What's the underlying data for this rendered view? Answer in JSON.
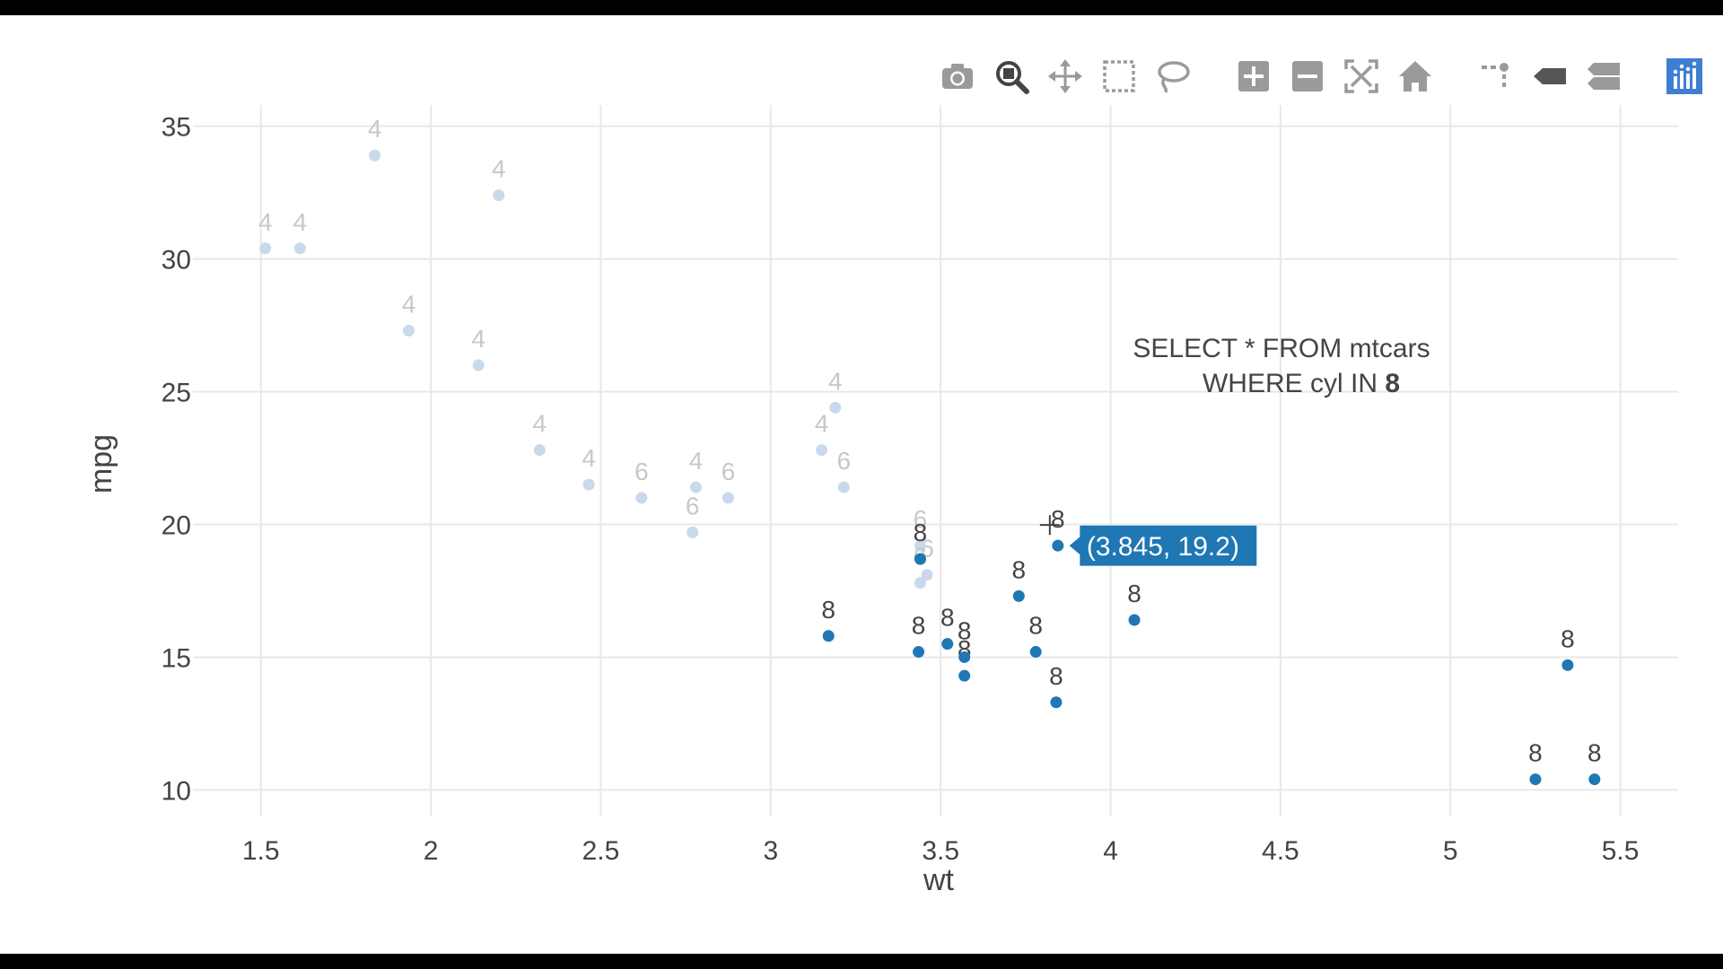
{
  "modebar": {
    "buttons": [
      {
        "name": "camera-icon",
        "label": "Download plot as a png",
        "active": false
      },
      {
        "name": "zoom-icon",
        "label": "Zoom",
        "active": true
      },
      {
        "name": "pan-icon",
        "label": "Pan",
        "active": false
      },
      {
        "name": "box-select-icon",
        "label": "Box Select",
        "active": false
      },
      {
        "name": "lasso-select-icon",
        "label": "Lasso Select",
        "active": false
      },
      {
        "name": "zoom-in-icon",
        "label": "Zoom in",
        "active": false
      },
      {
        "name": "zoom-out-icon",
        "label": "Zoom out",
        "active": false
      },
      {
        "name": "autoscale-icon",
        "label": "Autoscale",
        "active": false
      },
      {
        "name": "reset-axes-icon",
        "label": "Reset axes",
        "active": false
      },
      {
        "name": "spike-lines-icon",
        "label": "Toggle Spike Lines",
        "active": false
      },
      {
        "name": "hover-closest-icon",
        "label": "Show closest data on hover",
        "active": false
      },
      {
        "name": "hover-compare-icon",
        "label": "Compare data on hover",
        "active": false
      },
      {
        "name": "plotly-logo-icon",
        "label": "Produced with Plotly",
        "active": false
      }
    ]
  },
  "annotation": {
    "line1": "SELECT * FROM mtcars",
    "line2_prefix": "WHERE cyl IN ",
    "line2_bold": "8"
  },
  "hover": {
    "text": "(3.845, 19.2)",
    "x": 3.845,
    "y": 19.2
  },
  "chart_data": {
    "type": "scatter",
    "xlabel": "wt",
    "ylabel": "mpg",
    "xlim": [
      1.3,
      5.67
    ],
    "ylim": [
      9.0,
      35.8
    ],
    "xticks": [
      1.5,
      2,
      2.5,
      3,
      3.5,
      4,
      4.5,
      5,
      5.5
    ],
    "xtick_labels": [
      "1.5",
      "2",
      "2.5",
      "3",
      "3.5",
      "4",
      "4.5",
      "5",
      "5.5"
    ],
    "yticks": [
      10,
      15,
      20,
      25,
      30,
      35
    ],
    "ytick_labels": [
      "10",
      "15",
      "20",
      "25",
      "30",
      "35"
    ],
    "grid": true,
    "selected_color": "#1f77b4",
    "unselected_color": "#c8d9eb",
    "selected_label_color": "#444444",
    "unselected_label_color": "#c8c8c8",
    "points": [
      {
        "x": 2.62,
        "y": 21.0,
        "label": "6",
        "selected": false
      },
      {
        "x": 2.875,
        "y": 21.0,
        "label": "6",
        "selected": false
      },
      {
        "x": 2.32,
        "y": 22.8,
        "label": "4",
        "selected": false
      },
      {
        "x": 3.215,
        "y": 21.4,
        "label": "6",
        "selected": false
      },
      {
        "x": 3.44,
        "y": 18.7,
        "label": "8",
        "selected": true
      },
      {
        "x": 3.46,
        "y": 18.1,
        "label": "6",
        "selected": false
      },
      {
        "x": 3.57,
        "y": 14.3,
        "label": "8",
        "selected": true
      },
      {
        "x": 3.19,
        "y": 24.4,
        "label": "4",
        "selected": false
      },
      {
        "x": 3.15,
        "y": 22.8,
        "label": "4",
        "selected": false
      },
      {
        "x": 3.44,
        "y": 19.2,
        "label": "6",
        "selected": false
      },
      {
        "x": 3.44,
        "y": 17.8,
        "label": "6",
        "selected": false
      },
      {
        "x": 4.07,
        "y": 16.4,
        "label": "8",
        "selected": true
      },
      {
        "x": 3.73,
        "y": 17.3,
        "label": "8",
        "selected": true
      },
      {
        "x": 3.78,
        "y": 15.2,
        "label": "8",
        "selected": true
      },
      {
        "x": 5.25,
        "y": 10.4,
        "label": "8",
        "selected": true
      },
      {
        "x": 5.424,
        "y": 10.4,
        "label": "8",
        "selected": true
      },
      {
        "x": 5.345,
        "y": 14.7,
        "label": "8",
        "selected": true
      },
      {
        "x": 2.2,
        "y": 32.4,
        "label": "4",
        "selected": false
      },
      {
        "x": 1.615,
        "y": 30.4,
        "label": "4",
        "selected": false
      },
      {
        "x": 1.835,
        "y": 33.9,
        "label": "4",
        "selected": false
      },
      {
        "x": 2.465,
        "y": 21.5,
        "label": "4",
        "selected": false
      },
      {
        "x": 3.52,
        "y": 15.5,
        "label": "8",
        "selected": true
      },
      {
        "x": 3.435,
        "y": 15.2,
        "label": "8",
        "selected": true
      },
      {
        "x": 3.84,
        "y": 13.3,
        "label": "8",
        "selected": true
      },
      {
        "x": 3.845,
        "y": 19.2,
        "label": "8",
        "selected": true
      },
      {
        "x": 1.935,
        "y": 27.3,
        "label": "4",
        "selected": false
      },
      {
        "x": 2.14,
        "y": 26.0,
        "label": "4",
        "selected": false
      },
      {
        "x": 1.513,
        "y": 30.4,
        "label": "4",
        "selected": false
      },
      {
        "x": 3.17,
        "y": 15.8,
        "label": "8",
        "selected": true
      },
      {
        "x": 2.77,
        "y": 19.7,
        "label": "6",
        "selected": false
      },
      {
        "x": 3.57,
        "y": 15.0,
        "label": "8",
        "selected": true
      },
      {
        "x": 2.78,
        "y": 21.4,
        "label": "4",
        "selected": false
      }
    ]
  }
}
